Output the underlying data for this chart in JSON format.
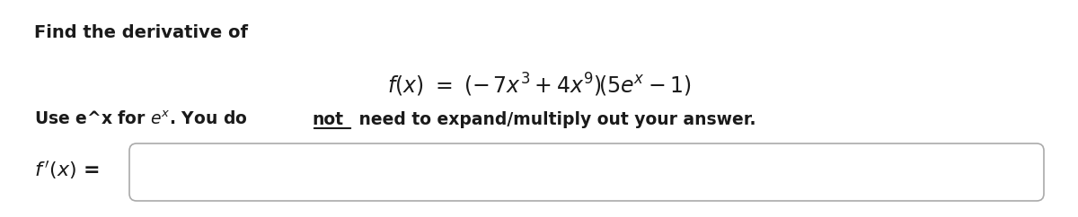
{
  "bg_color": "#ffffff",
  "title_text": "Find the derivative of",
  "title_fontsize": 14,
  "formula_fontsize": 17,
  "instruction_fontsize": 13.5,
  "fprime_fontsize": 16,
  "box_facecolor": "#ffffff",
  "box_edgecolor": "#aaaaaa",
  "text_color": "#1a1a1a"
}
